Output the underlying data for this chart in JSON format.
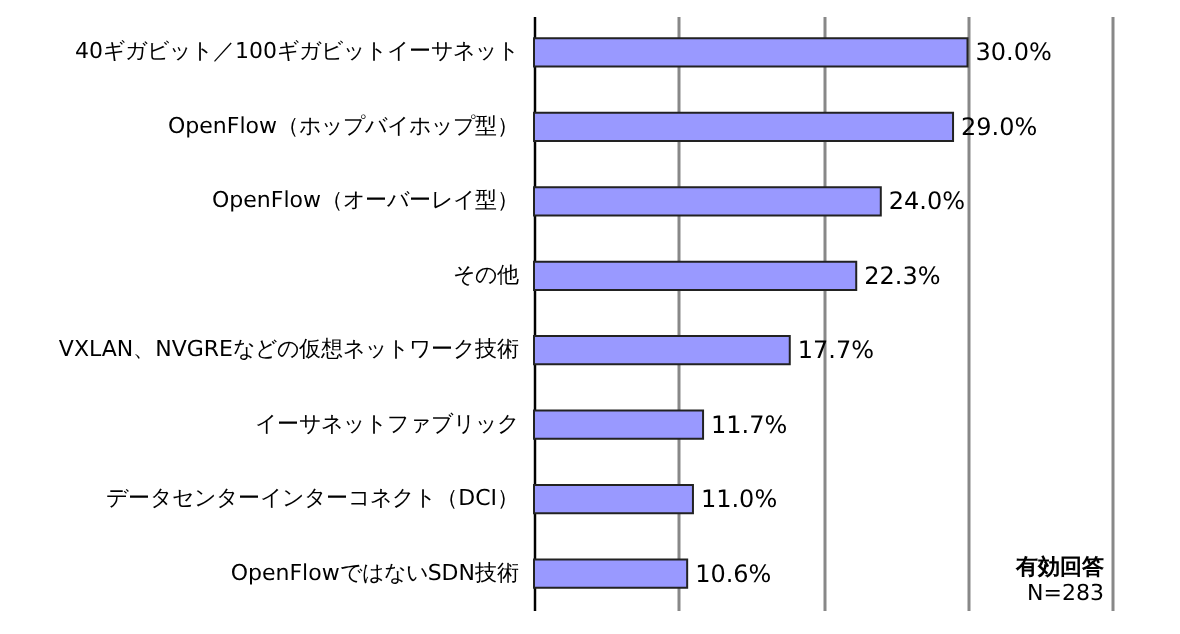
{
  "chart_data": {
    "type": "bar",
    "orientation": "horizontal",
    "categories": [
      "40ギガビット／100ギガビットイーサネット",
      "OpenFlow（ホップバイホップ型）",
      "OpenFlow（オーバーレイ型）",
      "その他",
      "VXLAN、NVGREなどの仮想ネットワーク技術",
      "イーサネットファブリック",
      "データセンターインターコネクト（DCI）",
      "OpenFlowではないSDN技術"
    ],
    "values": [
      30.0,
      29.0,
      24.0,
      22.3,
      17.7,
      11.7,
      11.0,
      10.6
    ],
    "value_labels": [
      "30.0%",
      "29.0%",
      "24.0%",
      "22.3%",
      "17.7%",
      "11.7%",
      "11.0%",
      "10.6%"
    ],
    "color": "#9999ff",
    "xlim": [
      0,
      40
    ],
    "xticks": [
      {
        "value": 0,
        "label": null
      },
      {
        "value": 10,
        "label": null
      },
      {
        "value": 20,
        "label": null
      },
      {
        "value": 30,
        "label": null
      },
      {
        "value": 40,
        "label": null
      }
    ],
    "grid": "x",
    "tick_labels": "y",
    "annotations": [
      "有効回答",
      "N=283"
    ]
  }
}
